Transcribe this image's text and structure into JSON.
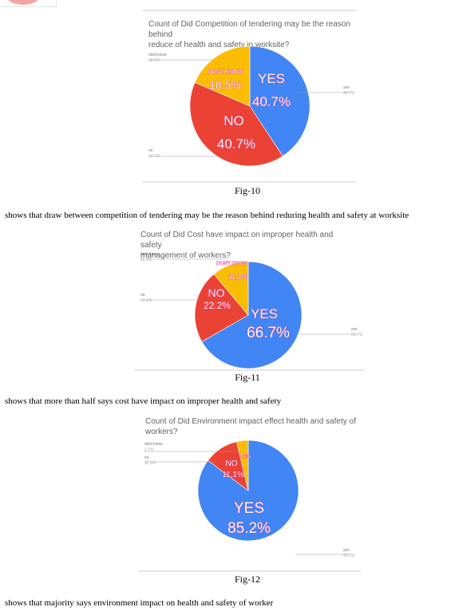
{
  "figures": [
    {
      "title_line1": "Count of Did Competition of tendering may be the reason behind",
      "title_line2": "reduce of health and safety in worksite?",
      "caption": "Fig-10",
      "description": "shows that draw between competition of tendering may be the reason behind reduring health and safety at worksite",
      "chart_data": {
        "type": "pie",
        "title": "Count of Did Competition of tendering may be the reason behind reduce of health and safety in worksite?",
        "slices": [
          {
            "label": "yes",
            "value": 40.7,
            "inner_label": "YES",
            "inner_pct": "40.7%",
            "outer_pct": "40.7%",
            "color": "#4285f4"
          },
          {
            "label": "no",
            "value": 40.7,
            "inner_label": "NO",
            "inner_pct": "40.7%",
            "outer_pct": "40.7%",
            "color": "#ea4335"
          },
          {
            "label": "dont know",
            "value": 18.5,
            "inner_label": "DON'T KNOW",
            "inner_pct": "18.5%",
            "outer_pct": "18.5%",
            "color": "#fbbc04"
          }
        ]
      }
    },
    {
      "title_line1": "Count of Did Cost have impact on improper health and safety",
      "title_line2": "management of workers?",
      "caption": "Fig-11",
      "description": "shows that more than half says cost have impact on improper health and safety",
      "chart_data": {
        "type": "pie",
        "title": "Count of Did Cost have impact on improper health and safety management of workers?",
        "slices": [
          {
            "label": "yes",
            "value": 66.7,
            "inner_label": "YES",
            "inner_pct": "66.7%",
            "outer_pct": "66.7%",
            "color": "#4285f4"
          },
          {
            "label": "no",
            "value": 22.2,
            "inner_label": "NO",
            "inner_pct": "22.2%",
            "outer_pct": "22.2%",
            "color": "#ea4335"
          },
          {
            "label": "dont know",
            "value": 11.1,
            "inner_label": "DON'T KNOW",
            "inner_pct": "11.1%",
            "outer_pct": "11.1%",
            "color": "#fbbc04"
          }
        ]
      }
    },
    {
      "title_line1": "Count of Did Environment impact effect health and safety of",
      "title_line2": "workers?",
      "caption": "Fig-12",
      "description": "shows that majority says environment impact on health and safety of worker",
      "chart_data": {
        "type": "pie",
        "title": "Count of Did Environment impact effect health and safety of workers?",
        "slices": [
          {
            "label": "yes",
            "value": 85.2,
            "inner_label": "YES",
            "inner_pct": "85.2%",
            "outer_pct": "85.2%",
            "color": "#4285f4"
          },
          {
            "label": "no",
            "value": 11.1,
            "inner_label": "NO",
            "inner_pct": "11.1%",
            "outer_pct": "11.1%",
            "color": "#ea4335"
          },
          {
            "label": "dont know",
            "value": 3.7,
            "inner_label": "",
            "inner_pct": "3.7%",
            "outer_pct": "3.7%",
            "color": "#fbbc04"
          }
        ]
      }
    }
  ]
}
